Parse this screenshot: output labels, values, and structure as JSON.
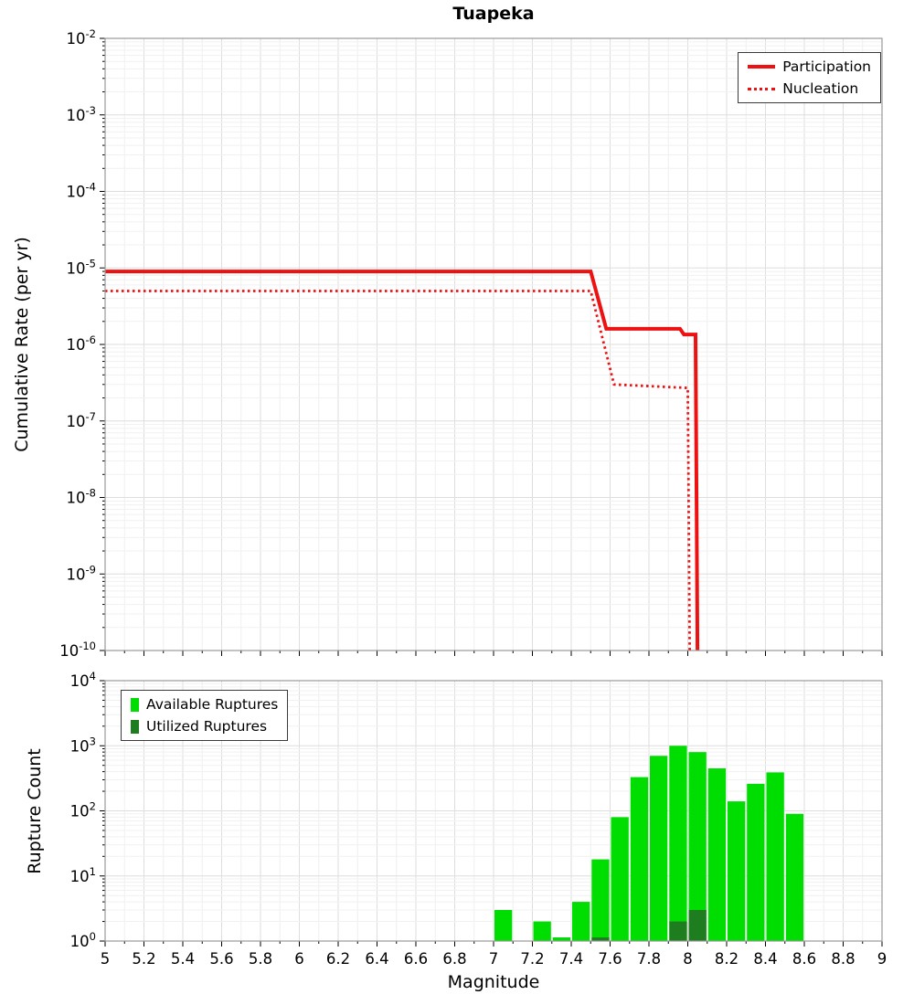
{
  "figure": {
    "title": "Tuapeka",
    "xlabel": "Magnitude",
    "top_ylabel": "Cumulative Rate (per yr)",
    "bottom_ylabel": "Rupture Count"
  },
  "legend_top": {
    "items": [
      {
        "label": "Participation",
        "style": "solid",
        "color": "#ee1111"
      },
      {
        "label": "Nucleation",
        "style": "dotted",
        "color": "#ee1111"
      }
    ]
  },
  "legend_bottom": {
    "items": [
      {
        "label": "Available Ruptures",
        "color": "#00dd00"
      },
      {
        "label": "Utilized Ruptures",
        "color": "#1e7d1e"
      }
    ]
  },
  "chart_data": [
    {
      "type": "line",
      "title": "Tuapeka",
      "xlabel": "Magnitude",
      "ylabel": "Cumulative Rate (per yr)",
      "xlim": [
        5,
        9
      ],
      "x_tick_step": 0.2,
      "ylim_log10": [
        -10,
        -2
      ],
      "grid": true,
      "legend_position": "upper right",
      "series": [
        {
          "name": "Participation",
          "style": "solid",
          "color": "#ee1111",
          "width": 4,
          "points": [
            [
              5.0,
              9e-06
            ],
            [
              7.5,
              9e-06
            ],
            [
              7.58,
              1.6e-06
            ],
            [
              7.96,
              1.6e-06
            ],
            [
              7.98,
              1.35e-06
            ],
            [
              8.04,
              1.35e-06
            ],
            [
              8.05,
              1e-10
            ]
          ]
        },
        {
          "name": "Nucleation",
          "style": "dotted",
          "color": "#ee1111",
          "width": 2.8,
          "points": [
            [
              5.0,
              5e-06
            ],
            [
              7.5,
              5e-06
            ],
            [
              7.62,
              3e-07
            ],
            [
              8.0,
              2.7e-07
            ],
            [
              8.01,
              1e-10
            ]
          ]
        }
      ]
    },
    {
      "type": "bar",
      "xlabel": "Magnitude",
      "ylabel": "Rupture Count",
      "xlim": [
        5,
        9
      ],
      "x_tick_step": 0.2,
      "ylim_log10": [
        0,
        4
      ],
      "grid": true,
      "legend_position": "upper left",
      "bin_width": 0.1,
      "series": [
        {
          "name": "Available Ruptures",
          "color": "#00dd00",
          "bins": [
            [
              7.05,
              3
            ],
            [
              7.25,
              2
            ],
            [
              7.35,
              1
            ],
            [
              7.45,
              4
            ],
            [
              7.55,
              18
            ],
            [
              7.65,
              80
            ],
            [
              7.75,
              330
            ],
            [
              7.85,
              700
            ],
            [
              7.95,
              1000
            ],
            [
              8.05,
              800
            ],
            [
              8.15,
              450
            ],
            [
              8.25,
              140
            ],
            [
              8.35,
              260
            ],
            [
              8.45,
              390
            ],
            [
              8.55,
              90
            ]
          ]
        },
        {
          "name": "Utilized Ruptures",
          "color": "#1e7d1e",
          "bins": [
            [
              7.55,
              1
            ],
            [
              7.95,
              2
            ],
            [
              8.05,
              3
            ]
          ]
        }
      ]
    }
  ]
}
